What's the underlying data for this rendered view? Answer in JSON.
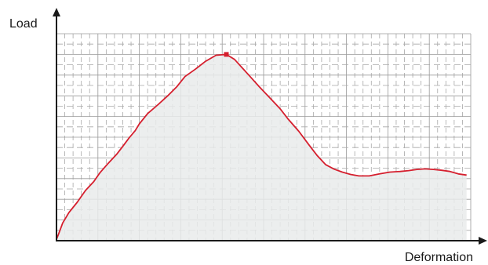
{
  "chart_data": {
    "type": "area",
    "title": "",
    "xlabel": "Deformation",
    "ylabel": "Load",
    "grid": true,
    "axis_ticks_labeled": false,
    "x": [
      0,
      0.5,
      1.5,
      3,
      5,
      7,
      9,
      10.5,
      12.5,
      14.5,
      16,
      17.5,
      19,
      20,
      22,
      24.5,
      27,
      29,
      31,
      33.5,
      36,
      38.5,
      41,
      43,
      45,
      47,
      49,
      51.5,
      54,
      56,
      58.5,
      61,
      63,
      65,
      67,
      69,
      71,
      73,
      75.5,
      78,
      80.5,
      83,
      85,
      87,
      89,
      91,
      93,
      95,
      97,
      99
    ],
    "y": [
      0.5,
      2.2,
      6.0,
      9.5,
      13.0,
      17.0,
      20.0,
      23.0,
      26.2,
      29.2,
      31.9,
      34.7,
      37.2,
      39.5,
      43.0,
      46.0,
      49.2,
      52.0,
      55.5,
      58.0,
      60.7,
      62.7,
      63.0,
      61.3,
      58.2,
      55.1,
      52.0,
      48.3,
      44.6,
      41.0,
      37.0,
      32.3,
      28.7,
      25.7,
      24.2,
      23.2,
      22.4,
      21.9,
      21.9,
      22.6,
      23.2,
      23.4,
      23.7,
      24.1,
      24.3,
      24.1,
      23.8,
      23.4,
      22.6,
      22.2
    ],
    "xlim": [
      0,
      100
    ],
    "ylim": [
      0,
      70
    ],
    "peak": {
      "x": 41,
      "y": 63.0
    },
    "colors": {
      "line": "#d51f2e",
      "fill": "#e9ebeb",
      "peak_marker": "#d51f2e",
      "grid_major": "#9a9a9a",
      "grid_minor": "#a8a8a8",
      "axis": "#1a1a1a"
    }
  }
}
